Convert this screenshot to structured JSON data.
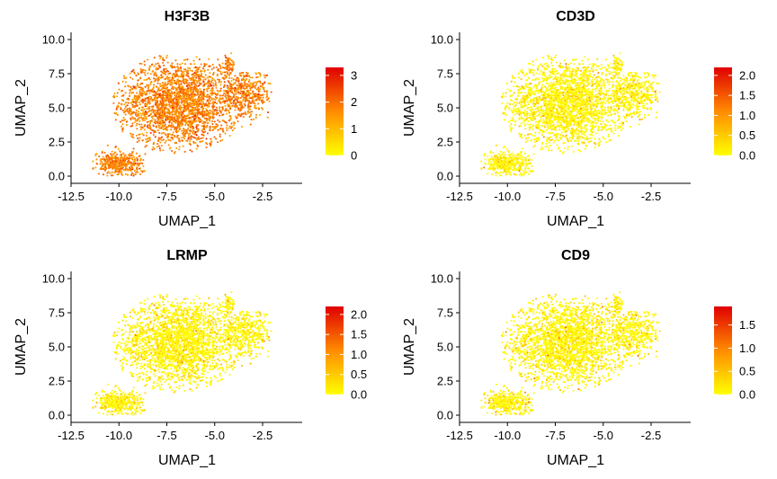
{
  "chart_data": [
    {
      "type": "scatter",
      "title": "H3F3B",
      "xlabel": "UMAP_1",
      "ylabel": "UMAP_2",
      "xlim": [
        -12.5,
        -1.0
      ],
      "ylim": [
        -0.3,
        10.5
      ],
      "x_ticks": [
        -12.5,
        -10.0,
        -7.5,
        -5.0,
        -2.5
      ],
      "x_tick_labels": [
        "-12.5",
        "-10.0",
        "-7.5",
        "-5.0",
        "-2.5"
      ],
      "y_ticks": [
        0.0,
        2.5,
        5.0,
        7.5,
        10.0
      ],
      "y_tick_labels": [
        "0.0",
        "2.5",
        "5.0",
        "7.5",
        "10.0"
      ],
      "color_scale": {
        "low": "#ffff00",
        "mid": "#ff8c00",
        "high": "#e00000",
        "min": 0,
        "max": 3.3
      },
      "legend_ticks": [
        0,
        1,
        2,
        3
      ],
      "legend_tick_labels": [
        "0",
        "1",
        "2",
        "3"
      ],
      "expression_level": "high",
      "hotspots": [],
      "grid": false,
      "legend_position": "right"
    },
    {
      "type": "scatter",
      "title": "CD3D",
      "xlabel": "UMAP_1",
      "ylabel": "UMAP_2",
      "xlim": [
        -12.5,
        -1.0
      ],
      "ylim": [
        -0.3,
        10.5
      ],
      "x_ticks": [
        -12.5,
        -10.0,
        -7.5,
        -5.0,
        -2.5
      ],
      "x_tick_labels": [
        "-12.5",
        "-10.0",
        "-7.5",
        "-5.0",
        "-2.5"
      ],
      "y_ticks": [
        0.0,
        2.5,
        5.0,
        7.5,
        10.0
      ],
      "y_tick_labels": [
        "0.0",
        "2.5",
        "5.0",
        "7.5",
        "10.0"
      ],
      "color_scale": {
        "low": "#ffff00",
        "mid": "#ff8c00",
        "high": "#e00000",
        "min": 0,
        "max": 2.2
      },
      "legend_ticks": [
        0.0,
        0.5,
        1.0,
        1.5,
        2.0
      ],
      "legend_tick_labels": [
        "0.0",
        "0.5",
        "1.0",
        "1.5",
        "2.0"
      ],
      "expression_level": "low",
      "hotspots": [
        {
          "cluster": "bottom-left",
          "level": 0.55
        }
      ],
      "grid": false,
      "legend_position": "right"
    },
    {
      "type": "scatter",
      "title": "LRMP",
      "xlabel": "UMAP_1",
      "ylabel": "UMAP_2",
      "xlim": [
        -12.5,
        -1.0
      ],
      "ylim": [
        -0.3,
        10.5
      ],
      "x_ticks": [
        -12.5,
        -10.0,
        -7.5,
        -5.0,
        -2.5
      ],
      "x_tick_labels": [
        "-12.5",
        "-10.0",
        "-7.5",
        "-5.0",
        "-2.5"
      ],
      "y_ticks": [
        0.0,
        2.5,
        5.0,
        7.5,
        10.0
      ],
      "y_tick_labels": [
        "0.0",
        "2.5",
        "5.0",
        "7.5",
        "10.0"
      ],
      "color_scale": {
        "low": "#ffff00",
        "mid": "#ff8c00",
        "high": "#e00000",
        "min": 0,
        "max": 2.2
      },
      "legend_ticks": [
        0.0,
        0.5,
        1.0,
        1.5,
        2.0
      ],
      "legend_tick_labels": [
        "0.0",
        "0.5",
        "1.0",
        "1.5",
        "2.0"
      ],
      "expression_level": "low",
      "hotspots": [
        {
          "cluster": "top-small",
          "level": 0.6
        }
      ],
      "grid": false,
      "legend_position": "right"
    },
    {
      "type": "scatter",
      "title": "CD9",
      "xlabel": "UMAP_1",
      "ylabel": "UMAP_2",
      "xlim": [
        -12.5,
        -1.0
      ],
      "ylim": [
        -0.3,
        10.5
      ],
      "x_ticks": [
        -12.5,
        -10.0,
        -7.5,
        -5.0,
        -2.5
      ],
      "x_tick_labels": [
        "-12.5",
        "-10.0",
        "-7.5",
        "-5.0",
        "-2.5"
      ],
      "y_ticks": [
        0.0,
        2.5,
        5.0,
        7.5,
        10.0
      ],
      "y_tick_labels": [
        "0.0",
        "2.5",
        "5.0",
        "7.5",
        "10.0"
      ],
      "color_scale": {
        "low": "#ffff00",
        "mid": "#ff8c00",
        "high": "#e00000",
        "min": 0,
        "max": 1.9
      },
      "legend_ticks": [
        0.0,
        0.5,
        1.0,
        1.5
      ],
      "legend_tick_labels": [
        "0.0",
        "0.5",
        "1.0",
        "1.5"
      ],
      "expression_level": "low",
      "hotspots": [],
      "grid": false,
      "legend_position": "right"
    }
  ]
}
